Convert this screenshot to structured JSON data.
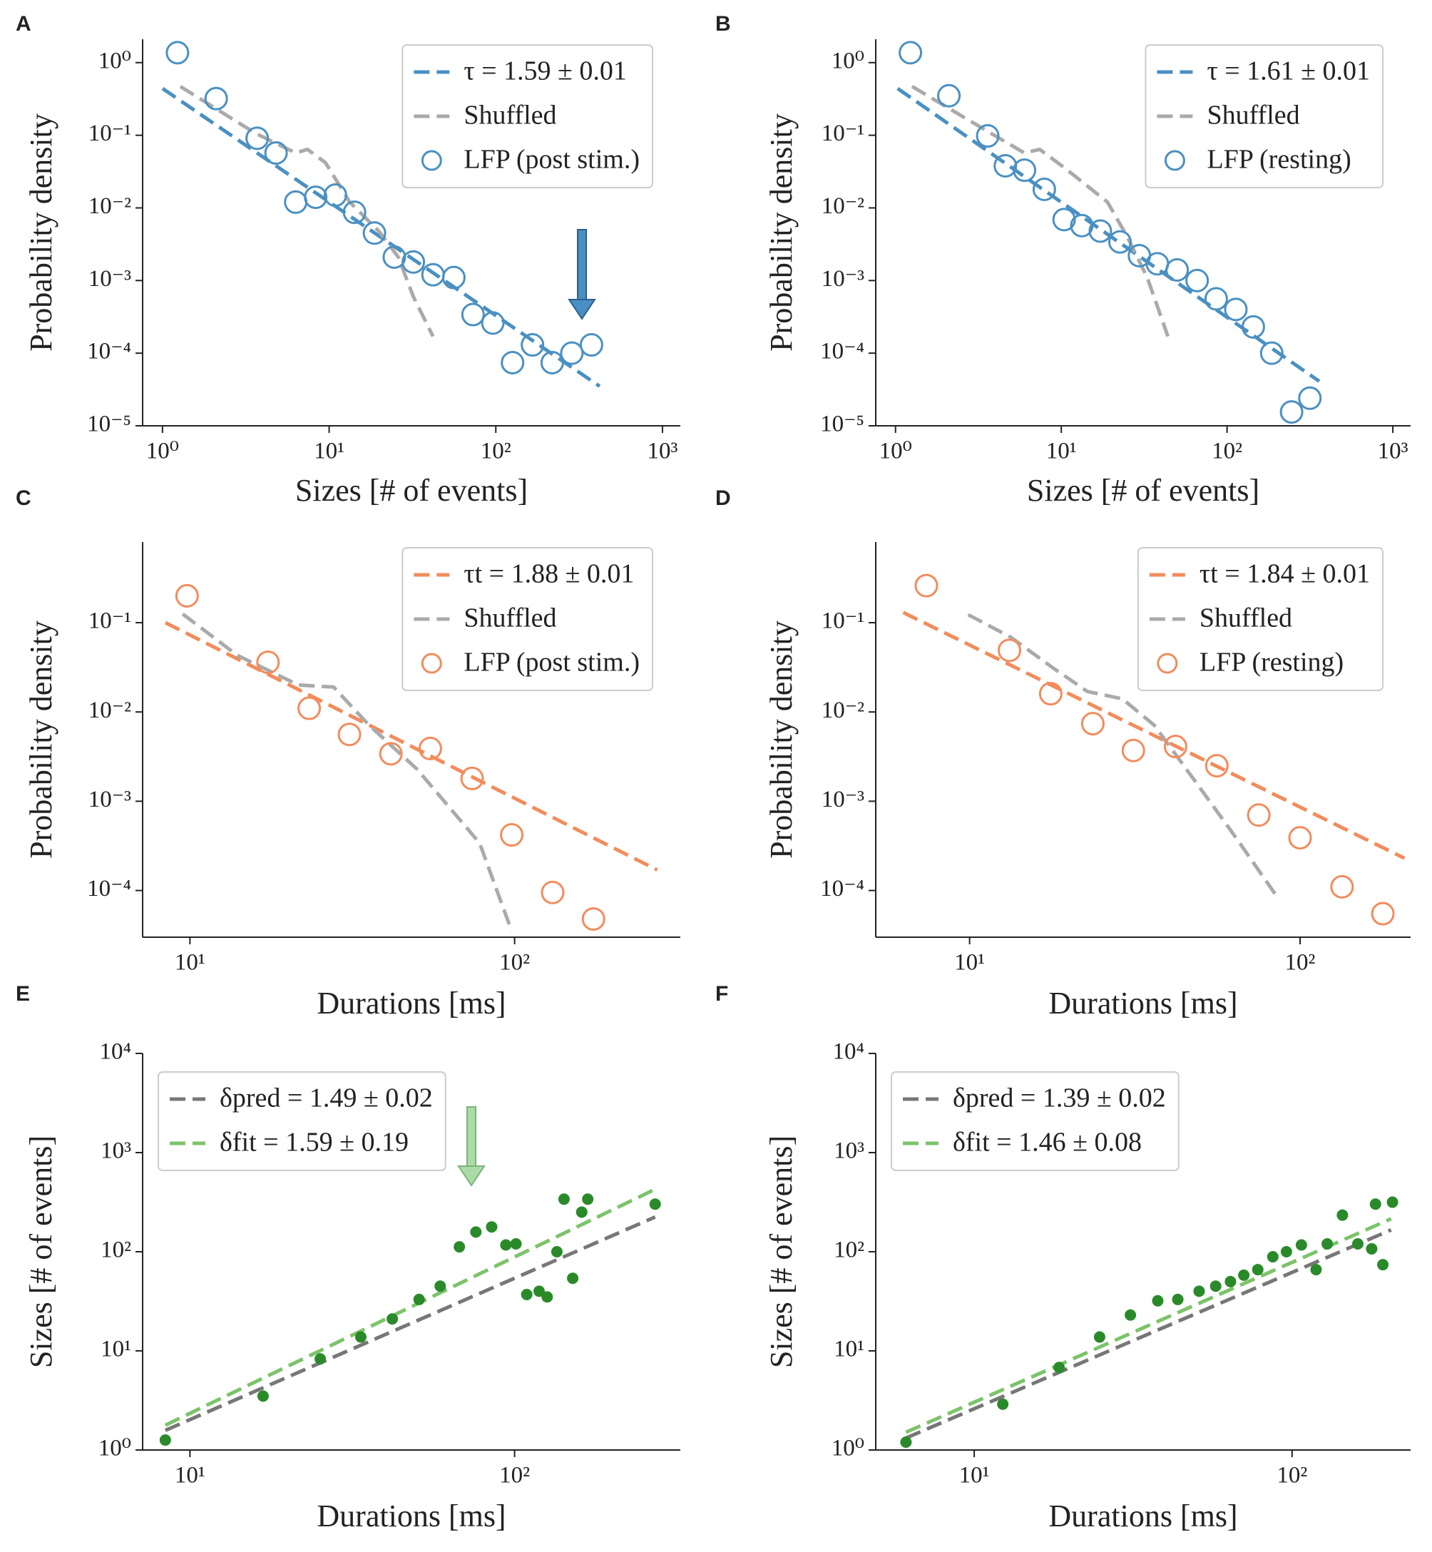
{
  "chart_data": [
    {
      "type": "scatter",
      "panel": "A",
      "xscale": "log",
      "yscale": "log",
      "xlabel": "Sizes [# of events]",
      "ylabel": "Probability density",
      "xlim": [
        0.76,
        1280
      ],
      "ylim": [
        1e-05,
        2.1
      ],
      "xticks": [
        {
          "value": 1,
          "label": "10⁰"
        },
        {
          "value": 10,
          "label": "10¹"
        },
        {
          "value": 100,
          "label": "10²"
        },
        {
          "value": 1000,
          "label": "10³"
        }
      ],
      "yticks": [
        {
          "value": 1,
          "label": "10⁰"
        },
        {
          "value": 0.1,
          "label": "10⁻¹"
        },
        {
          "value": 0.01,
          "label": "10⁻²"
        },
        {
          "value": 0.001,
          "label": "10⁻³"
        },
        {
          "value": 0.0001,
          "label": "10⁻⁴"
        },
        {
          "value": 1e-05,
          "label": "10⁻⁵"
        }
      ],
      "legend": "upper right",
      "series": [
        {
          "name": "τ = 1.59 ± 0.01",
          "color": "#4a90c2",
          "style": "dashed",
          "x": [
            1,
            420
          ],
          "values": [
            0.44,
            3.5e-05
          ]
        },
        {
          "name": "Shuffled",
          "color": "#aaaaaa",
          "style": "dashed",
          "x": [
            1.28,
            3.6,
            6.3,
            7.4,
            9.5,
            13.3,
            20,
            26,
            32,
            42
          ],
          "values": [
            0.47,
            0.107,
            0.057,
            0.064,
            0.042,
            0.012,
            0.0047,
            0.0021,
            0.0006,
            0.00017
          ]
        },
        {
          "name": "LFP (post stim.)",
          "color": "#4a90c2",
          "style": "open-circle",
          "x": [
            1.23,
            2.1,
            3.7,
            4.8,
            6.3,
            8.3,
            10.9,
            14.2,
            18.7,
            24.6,
            32,
            42,
            56,
            73,
            96,
            126,
            166,
            218,
            286,
            375
          ],
          "values": [
            1.37,
            0.32,
            0.091,
            0.057,
            0.012,
            0.014,
            0.015,
            0.0087,
            0.0045,
            0.0021,
            0.0018,
            0.0012,
            0.0011,
            0.00034,
            0.00026,
            7.4e-05,
            0.00013,
            7.4e-05,
            0.0001,
            0.00013
          ]
        }
      ]
    },
    {
      "type": "scatter",
      "panel": "B",
      "xscale": "log",
      "yscale": "log",
      "xlabel": "Sizes [# of events]",
      "ylabel": "Probability density",
      "xlim": [
        0.76,
        1280
      ],
      "ylim": [
        1e-05,
        2.1
      ],
      "xticks": [
        {
          "value": 1,
          "label": "10⁰"
        },
        {
          "value": 10,
          "label": "10¹"
        },
        {
          "value": 100,
          "label": "10²"
        },
        {
          "value": 1000,
          "label": "10³"
        }
      ],
      "yticks": [
        {
          "value": 1,
          "label": "10⁰"
        },
        {
          "value": 0.1,
          "label": "10⁻¹"
        },
        {
          "value": 0.01,
          "label": "10⁻²"
        },
        {
          "value": 0.001,
          "label": "10⁻³"
        },
        {
          "value": 0.0001,
          "label": "10⁻⁴"
        },
        {
          "value": 1e-05,
          "label": "10⁻⁵"
        }
      ],
      "legend": "upper right",
      "series": [
        {
          "name": "τ = 1.61 ± 0.01",
          "color": "#4a90c2",
          "style": "dashed",
          "x": [
            1.03,
            360
          ],
          "values": [
            0.44,
            4.1e-05
          ]
        },
        {
          "name": "Shuffled",
          "color": "#aaaaaa",
          "style": "dashed",
          "x": [
            1.26,
            3.75,
            6,
            7.4,
            10.4,
            19,
            25,
            33,
            44
          ],
          "values": [
            0.47,
            0.107,
            0.057,
            0.064,
            0.036,
            0.012,
            0.004,
            0.0011,
            0.00017
          ]
        },
        {
          "name": "LFP (resting)",
          "color": "#4a90c2",
          "style": "open-circle",
          "x": [
            1.23,
            2.1,
            3.6,
            4.6,
            6,
            7.9,
            10.4,
            13.3,
            17.2,
            22.6,
            29.6,
            38,
            50,
            66,
            86,
            113,
            144,
            186,
            245,
            316
          ],
          "values": [
            1.37,
            0.35,
            0.098,
            0.038,
            0.033,
            0.018,
            0.0069,
            0.0057,
            0.0048,
            0.0034,
            0.0022,
            0.0017,
            0.0014,
            0.001,
            0.00056,
            0.0004,
            0.00023,
            0.0001,
            1.55e-05,
            2.4e-05
          ]
        }
      ]
    },
    {
      "type": "scatter",
      "panel": "C",
      "xscale": "log",
      "yscale": "log",
      "xlabel": "Durations [ms]",
      "ylabel": "Probability density",
      "xlim": [
        7.15,
        324
      ],
      "ylim": [
        3e-05,
        0.8
      ],
      "xticks": [
        {
          "value": 10,
          "label": "10¹"
        },
        {
          "value": 100,
          "label": "10²"
        }
      ],
      "yticks": [
        {
          "value": 0.1,
          "label": "10⁻¹"
        },
        {
          "value": 0.01,
          "label": "10⁻²"
        },
        {
          "value": 0.001,
          "label": "10⁻³"
        },
        {
          "value": 0.0001,
          "label": "10⁻⁴"
        }
      ],
      "legend": "upper right",
      "series": [
        {
          "name": "τt = 1.88 ± 0.01",
          "color": "#f28c5c",
          "style": "dashed",
          "x": [
            8.4,
            275
          ],
          "values": [
            0.1,
            0.00017
          ]
        },
        {
          "name": "Shuffled",
          "color": "#aaaaaa",
          "style": "dashed",
          "x": [
            9.5,
            14,
            21.6,
            27.7,
            35.5,
            50,
            78,
            98
          ],
          "values": [
            0.125,
            0.043,
            0.02,
            0.019,
            0.0072,
            0.0023,
            0.00034,
            3.5e-05
          ]
        },
        {
          "name": "LFP (post stim.)",
          "color": "#f28c5c",
          "style": "open-circle",
          "x": [
            9.8,
            17.4,
            23.3,
            31,
            41.6,
            55,
            74,
            98,
            131,
            175
          ],
          "values": [
            0.2,
            0.036,
            0.011,
            0.0056,
            0.0034,
            0.0039,
            0.0018,
            0.00042,
            9.5e-05,
            4.8e-05
          ]
        }
      ]
    },
    {
      "type": "scatter",
      "panel": "D",
      "xscale": "log",
      "yscale": "log",
      "xlabel": "Durations [ms]",
      "ylabel": "Probability density",
      "xlim": [
        5.2,
        216
      ],
      "ylim": [
        3e-05,
        0.8
      ],
      "xticks": [
        {
          "value": 10,
          "label": "10¹"
        },
        {
          "value": 100,
          "label": "10²"
        }
      ],
      "yticks": [
        {
          "value": 0.1,
          "label": "10⁻¹"
        },
        {
          "value": 0.01,
          "label": "10⁻²"
        },
        {
          "value": 0.001,
          "label": "10⁻³"
        },
        {
          "value": 0.0001,
          "label": "10⁻⁴"
        }
      ],
      "legend": "upper right",
      "series": [
        {
          "name": "τt = 1.84 ± 0.01",
          "color": "#f28c5c",
          "style": "dashed",
          "x": [
            6.3,
            207
          ],
          "values": [
            0.13,
            0.00023
          ]
        },
        {
          "name": "Shuffled",
          "color": "#aaaaaa",
          "style": "dashed",
          "x": [
            9.9,
            13.3,
            17.7,
            22.7,
            29,
            36.2,
            48,
            64,
            85
          ],
          "values": [
            0.123,
            0.069,
            0.032,
            0.017,
            0.014,
            0.0071,
            0.0017,
            0.00039,
            8.6e-05
          ]
        },
        {
          "name": "LFP (resting)",
          "color": "#f28c5c",
          "style": "open-circle",
          "x": [
            7.4,
            13.2,
            17.6,
            23.6,
            31.3,
            42,
            56,
            75,
            100,
            134,
            178
          ],
          "values": [
            0.26,
            0.049,
            0.016,
            0.0074,
            0.0037,
            0.0041,
            0.0025,
            0.0007,
            0.00039,
            0.00011,
            5.5e-05
          ]
        }
      ]
    },
    {
      "type": "scatter",
      "panel": "E",
      "xscale": "log",
      "yscale": "log",
      "xlabel": "Durations [ms]",
      "ylabel": "Sizes [# of events]",
      "xlim": [
        7.15,
        324
      ],
      "ylim": [
        1,
        10000
      ],
      "xticks": [
        {
          "value": 10,
          "label": "10¹"
        },
        {
          "value": 100,
          "label": "10²"
        }
      ],
      "yticks": [
        {
          "value": 1,
          "label": "10⁰"
        },
        {
          "value": 10,
          "label": "10¹"
        },
        {
          "value": 100,
          "label": "10²"
        },
        {
          "value": 1000,
          "label": "10³"
        },
        {
          "value": 10000,
          "label": "10⁴"
        }
      ],
      "legend": "upper left",
      "series": [
        {
          "name": "δpred = 1.49 ± 0.02",
          "color": "#777777",
          "style": "dashed",
          "x": [
            8.4,
            271
          ],
          "values": [
            1.58,
            224
          ]
        },
        {
          "name": "δfit = 1.59 ± 0.19",
          "color": "#7cc36a",
          "style": "dashed",
          "x": [
            8.4,
            271
          ],
          "values": [
            1.78,
            427
          ]
        },
        {
          "color": "#2a8a2a",
          "style": "filled-circle",
          "x": [
            8.4,
            16.8,
            25.2,
            33.6,
            42,
            50.8,
            59,
            67.6,
            76,
            85,
            94,
            101,
            109,
            119,
            126,
            135,
            142,
            151,
            161,
            168,
            271
          ],
          "values": [
            1.26,
            3.5,
            8.3,
            13.8,
            21,
            33,
            45,
            112,
            158,
            178,
            117,
            120,
            37,
            40,
            35,
            100,
            339,
            54,
            251,
            339,
            302
          ]
        }
      ]
    },
    {
      "type": "scatter",
      "panel": "F",
      "xscale": "log",
      "yscale": "log",
      "xlabel": "Durations [ms]",
      "ylabel": "Sizes [# of events]",
      "xlim": [
        4.9,
        236
      ],
      "ylim": [
        1,
        10000
      ],
      "xticks": [
        {
          "value": 10,
          "label": "10¹"
        },
        {
          "value": 100,
          "label": "10²"
        }
      ],
      "yticks": [
        {
          "value": 1,
          "label": "10⁰"
        },
        {
          "value": 10,
          "label": "10¹"
        },
        {
          "value": 100,
          "label": "10²"
        },
        {
          "value": 1000,
          "label": "10³"
        },
        {
          "value": 10000,
          "label": "10⁴"
        }
      ],
      "legend": "upper left",
      "series": [
        {
          "name": "δpred = 1.39 ± 0.02",
          "color": "#777777",
          "style": "dashed",
          "x": [
            6.1,
            205
          ],
          "values": [
            1.32,
            166
          ]
        },
        {
          "name": "δfit = 1.46 ± 0.08",
          "color": "#7cc36a",
          "style": "dashed",
          "x": [
            6.1,
            205
          ],
          "values": [
            1.51,
            215
          ]
        },
        {
          "color": "#2a8a2a",
          "style": "filled-circle",
          "x": [
            6.1,
            12.3,
            18.5,
            24.8,
            31,
            37.8,
            43.7,
            51,
            57.5,
            64,
            70.5,
            78,
            87,
            96,
            107,
            119,
            129,
            144,
            161,
            178,
            193,
            183,
            207
          ],
          "values": [
            1.2,
            2.9,
            6.8,
            13.8,
            23,
            32,
            33,
            40,
            45,
            50,
            58,
            66,
            89,
            100,
            117,
            66,
            120,
            234,
            120,
            107,
            74,
            302,
            316
          ]
        }
      ]
    }
  ]
}
